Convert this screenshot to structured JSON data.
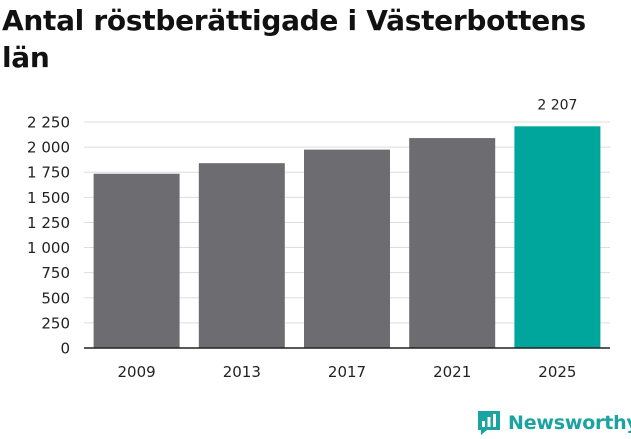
{
  "title": "Antal röstberättigade i Västerbottens län",
  "brand": {
    "name": "Newsworthy",
    "icon": "bar-chart-chat-icon",
    "color": "#1aa3a0"
  },
  "colors": {
    "bar": "#6d6c70",
    "highlight": "#00a59b",
    "grid": "#dddddd",
    "axis": "#222222"
  },
  "chart_data": {
    "type": "bar",
    "title": "Antal röstberättigade i Västerbottens län",
    "categories": [
      "2009",
      "2013",
      "2017",
      "2021",
      "2025"
    ],
    "values": [
      1735,
      1840,
      1975,
      2090,
      2207
    ],
    "data_labels": [
      "",
      "",
      "",
      "",
      "2 207"
    ],
    "highlight_index": 4,
    "xlabel": "",
    "ylabel": "",
    "ylim": [
      0,
      2250
    ],
    "yticks": [
      0,
      250,
      500,
      750,
      1000,
      1250,
      1500,
      1750,
      2000,
      2250
    ],
    "ytick_labels": [
      "0",
      "250",
      "500",
      "750",
      "1 000",
      "1 250",
      "1 500",
      "1 750",
      "2 000",
      "2 250"
    ],
    "grid": true
  }
}
